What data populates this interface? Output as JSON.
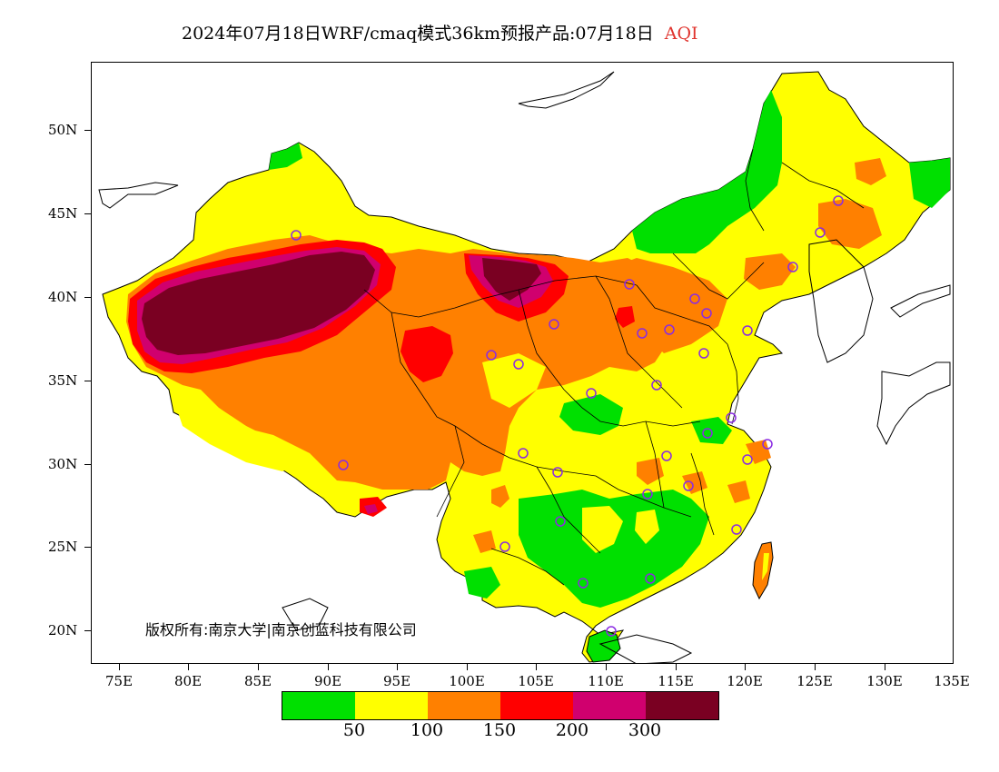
{
  "title": {
    "main": "2024年07月18日WRF/cmaq模式36km预报产品:07月18日",
    "pollutant": "AQI",
    "pollutant_color": "#e0342e"
  },
  "axes": {
    "y_labels": [
      "50N",
      "45N",
      "40N",
      "35N",
      "30N",
      "25N",
      "20N"
    ],
    "x_labels": [
      "75E",
      "80E",
      "85E",
      "90E",
      "95E",
      "100E",
      "105E",
      "110E",
      "115E",
      "120E",
      "125E",
      "130E",
      "135E"
    ]
  },
  "copyright": "版权所有:南京大学|南京创蓝科技有限公司",
  "legend": {
    "colors": [
      "#00e000",
      "#ffff00",
      "#ff8000",
      "#ff0000",
      "#d0006e",
      "#7a0022"
    ],
    "labels": [
      "50",
      "100",
      "150",
      "200",
      "300"
    ]
  },
  "map_colors": {
    "good": "#00e000",
    "moderate": "#ffff00",
    "usg": "#ff8000",
    "unhealthy": "#ff0000",
    "very_unhealthy": "#d0006e",
    "hazardous": "#7a0022",
    "city_marker": "#8a2be2",
    "border": "#000000"
  },
  "city_markers_count": 32
}
